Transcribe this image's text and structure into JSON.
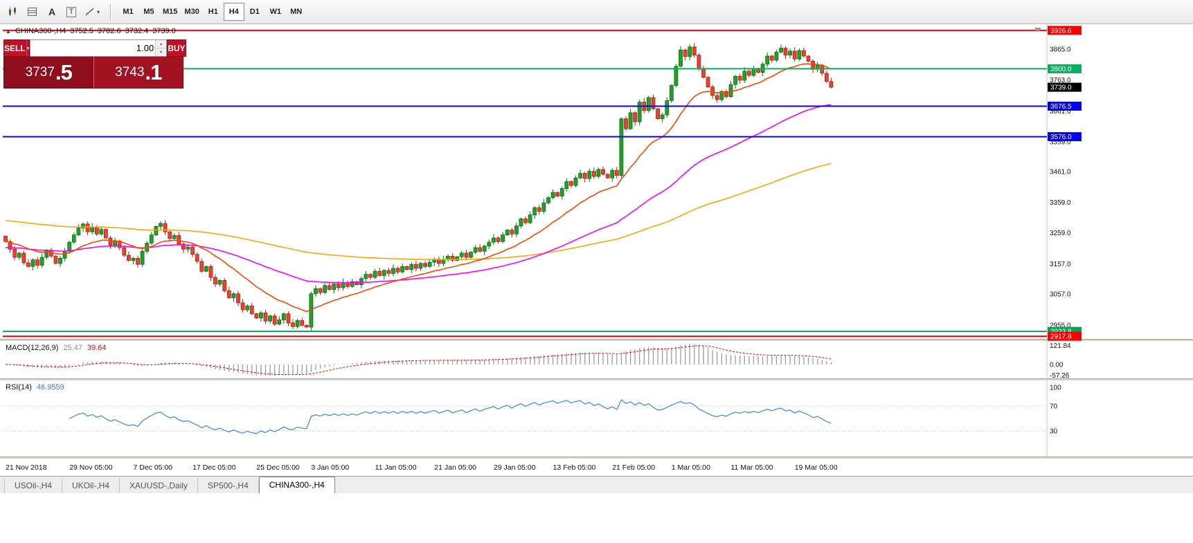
{
  "toolbar": {
    "timeframes": [
      "M1",
      "M5",
      "M15",
      "M30",
      "H1",
      "H4",
      "D1",
      "W1",
      "MN"
    ],
    "active_timeframe": "H4",
    "tools": {
      "a_label": "A",
      "t_label": "T"
    }
  },
  "chart": {
    "symbol_line": {
      "marker": "▲",
      "symbol": "CHINA300-,H4",
      "open": "3752.5",
      "high": "3782.6",
      "low": "3732.4",
      "close": "3739.0"
    },
    "trade_panel": {
      "sell_label": "SELL",
      "buy_label": "BUY",
      "volume": "1.00",
      "sell_price_main": "3737",
      "sell_price_frac": ".5",
      "buy_price_main": "3743",
      "buy_price_frac": ".1"
    }
  },
  "chart_data": {
    "type": "candlestick",
    "symbol": "CHINA300-,H4",
    "timeframe": "H4",
    "quote": {
      "open": 3752.5,
      "high": 3782.6,
      "low": 3732.4,
      "close": 3739.0
    },
    "first_open": 3248,
    "closes": [
      3230,
      3205,
      3178,
      3192,
      3160,
      3148,
      3170,
      3152,
      3178,
      3200,
      3182,
      3158,
      3175,
      3198,
      3228,
      3252,
      3275,
      3288,
      3262,
      3278,
      3255,
      3270,
      3242,
      3218,
      3232,
      3210,
      3185,
      3168,
      3175,
      3155,
      3198,
      3225,
      3252,
      3280,
      3290,
      3262,
      3240,
      3250,
      3222,
      3205,
      3212,
      3188,
      3165,
      3132,
      3148,
      3112,
      3090,
      3102,
      3068,
      3045,
      3058,
      3028,
      3005,
      3018,
      2992,
      2978,
      2995,
      2968,
      2985,
      2958,
      2972,
      2992,
      2962,
      2950,
      2970,
      2954,
      2948,
      3058,
      3075,
      3062,
      3085,
      3072,
      3090,
      3078,
      3095,
      3082,
      3098,
      3088,
      3108,
      3122,
      3112,
      3132,
      3118,
      3135,
      3125,
      3142,
      3130,
      3148,
      3138,
      3155,
      3142,
      3158,
      3148,
      3162,
      3172,
      3158,
      3170,
      3182,
      3168,
      3180,
      3192,
      3178,
      3195,
      3210,
      3198,
      3215,
      3228,
      3242,
      3230,
      3252,
      3268,
      3255,
      3282,
      3305,
      3292,
      3318,
      3342,
      3330,
      3358,
      3375,
      3392,
      3380,
      3405,
      3428,
      3415,
      3440,
      3455,
      3438,
      3462,
      3445,
      3468,
      3452,
      3440,
      3465,
      3448,
      3635,
      3602,
      3655,
      3625,
      3690,
      3662,
      3705,
      3668,
      3635,
      3648,
      3695,
      3745,
      3808,
      3862,
      3840,
      3872,
      3845,
      3800,
      3772,
      3740,
      3712,
      3698,
      3725,
      3708,
      3748,
      3775,
      3762,
      3792,
      3778,
      3800,
      3788,
      3815,
      3842,
      3828,
      3855,
      3868,
      3845,
      3858,
      3832,
      3860,
      3842,
      3825,
      3798,
      3812,
      3785,
      3758,
      3739
    ],
    "x_labels": [
      {
        "label": "21 Nov 2018",
        "index": 0
      },
      {
        "label": "29 Nov 05:00",
        "index": 14
      },
      {
        "label": "7 Dec 05:00",
        "index": 28
      },
      {
        "label": "17 Dec 05:00",
        "index": 41
      },
      {
        "label": "25 Dec 05:00",
        "index": 55
      },
      {
        "label": "3 Jan 05:00",
        "index": 67
      },
      {
        "label": "11 Jan 05:00",
        "index": 81
      },
      {
        "label": "21 Jan 05:00",
        "index": 94
      },
      {
        "label": "29 Jan 05:00",
        "index": 107
      },
      {
        "label": "13 Feb 05:00",
        "index": 120
      },
      {
        "label": "21 Feb 05:00",
        "index": 133
      },
      {
        "label": "1 Mar 05:00",
        "index": 146
      },
      {
        "label": "11 Mar 05:00",
        "index": 159
      },
      {
        "label": "19 Mar 05:00",
        "index": 173
      }
    ],
    "y_ticks": [
      3865.0,
      3763.0,
      3661.0,
      3559.0,
      3461.0,
      3359.0,
      3259.0,
      3157.0,
      3057.0,
      2955.0
    ],
    "levels": [
      {
        "text": "3926.6",
        "price": 3926.6,
        "bg": "#ff0000",
        "fg": "#ffffff",
        "line": true
      },
      {
        "text": "3800.0",
        "price": 3800.0,
        "bg": "#00b25c",
        "fg": "#ffffff",
        "line": true
      },
      {
        "text": "3739.0",
        "price": 3739.0,
        "bg": "#000000",
        "fg": "#ffffff",
        "line": false
      },
      {
        "text": "3676.5",
        "price": 3676.5,
        "bg": "#0000ff",
        "fg": "#ffffff",
        "line": true
      },
      {
        "text": "3576.0",
        "price": 3576.0,
        "bg": "#0000ff",
        "fg": "#ffffff",
        "line": true
      },
      {
        "text": "2933.8",
        "price": 2933.8,
        "bg": "#00a651",
        "fg": "#ffffff",
        "line": true
      },
      {
        "text": "2917.8",
        "price": 2917.8,
        "bg": "#ff0000",
        "fg": "#ffffff",
        "line": true
      }
    ],
    "moving_averages": [
      {
        "name": "slow-ma",
        "period": 150,
        "seed": 3300,
        "color": "#ffa500"
      },
      {
        "name": "mid-ma",
        "period": 60,
        "seed": 3210,
        "color": "#ff00ff"
      },
      {
        "name": "fast-ma",
        "period": 18,
        "seed": 3230,
        "color": "#ff4500"
      }
    ],
    "indicators": {
      "macd": {
        "label": "MACD(12,26,9)",
        "fast": 12,
        "slow": 26,
        "signal": 9,
        "value_main": "25.47",
        "value_signal": "39.64",
        "scale": [
          "121.84",
          "0.00",
          "-57.26"
        ]
      },
      "rsi": {
        "label": "RSI(14)",
        "period": 14,
        "value": "46.9559",
        "scale": [
          "100",
          "70",
          "30"
        ],
        "levels": [
          70,
          30
        ]
      }
    },
    "colors": {
      "up": "#21a126",
      "up_border": "#14691a",
      "down": "#e8432e",
      "down_border": "#a1281b",
      "macd_hist": "#9c9c9c",
      "macd_signal": "#e00000",
      "rsi": "#4a8fce"
    }
  },
  "tabs": {
    "items": [
      "USOil-,H4",
      "UKOil-,H4",
      "XAUUSD-,Daily",
      "SP500-,H4",
      "CHINA300-,H4"
    ],
    "active": "CHINA300-,H4"
  }
}
